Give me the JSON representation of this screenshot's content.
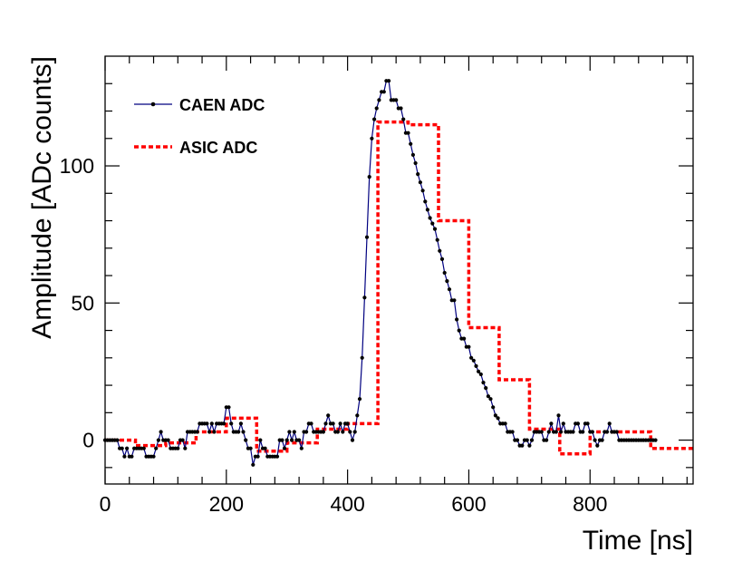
{
  "chart_data": {
    "type": "line",
    "title": "",
    "xlabel": "Time [ns]",
    "ylabel": "Amplitude [ADc counts]",
    "xlim": [
      0,
      970
    ],
    "ylim": [
      -16,
      140
    ],
    "x_ticks": [
      0,
      200,
      400,
      600,
      800
    ],
    "y_ticks": [
      0,
      50,
      100
    ],
    "x_tick_labels": [
      "0",
      "200",
      "400",
      "600",
      "800"
    ],
    "y_tick_labels": [
      "0",
      "50",
      "100"
    ],
    "legend_position": "top-left",
    "series": [
      {
        "name": "CAEN ADC",
        "style": "line-with-markers",
        "color": "#000080",
        "sample_interval_ns": 4,
        "x_start": 0,
        "values": [
          0,
          0,
          0,
          0,
          0,
          0,
          -3,
          -3,
          -6,
          -3,
          -6,
          -6,
          -3,
          -3,
          -3,
          -3,
          -3,
          -6,
          -6,
          -6,
          -6,
          -3,
          0,
          3,
          0,
          0,
          0,
          -3,
          -3,
          -3,
          -3,
          0,
          0,
          -3,
          3,
          3,
          3,
          3,
          3,
          6,
          6,
          6,
          6,
          3,
          6,
          3,
          6,
          6,
          6,
          6,
          12,
          12,
          6,
          3,
          3,
          3,
          6,
          3,
          0,
          -3,
          -3,
          -9,
          -6,
          -6,
          0,
          -3,
          -3,
          -6,
          -6,
          -6,
          -6,
          -6,
          0,
          0,
          -3,
          0,
          3,
          0,
          3,
          0,
          0,
          -3,
          3,
          3,
          6,
          6,
          3,
          3,
          3,
          3,
          3,
          6,
          9,
          6,
          6,
          3,
          3,
          6,
          3,
          6,
          6,
          3,
          0,
          3,
          9,
          15,
          30,
          52,
          74,
          96,
          110,
          117,
          121,
          124,
          127,
          127,
          131,
          131,
          124,
          124,
          124,
          121,
          121,
          117,
          112,
          112,
          108,
          104,
          101,
          97,
          94,
          91,
          87,
          84,
          81,
          79,
          77,
          73,
          69,
          66,
          61,
          58,
          55,
          51,
          51,
          44,
          40,
          37,
          37,
          34,
          34,
          30,
          29,
          27,
          25,
          24,
          21,
          19,
          16,
          15,
          12,
          9,
          8,
          6,
          6,
          6,
          3,
          3,
          3,
          0,
          0,
          -2,
          -2,
          0,
          0,
          -2,
          0,
          3,
          3,
          3,
          3,
          0,
          0,
          3,
          6,
          3,
          3,
          9,
          3,
          6,
          3,
          3,
          3,
          3,
          6,
          6,
          3,
          3,
          6,
          6,
          3,
          3,
          0,
          -2,
          0,
          0,
          3,
          3,
          6,
          3,
          3,
          3,
          0,
          0,
          0,
          0,
          0,
          0,
          0,
          0,
          0,
          0,
          0,
          0,
          0,
          0,
          0,
          0
        ]
      },
      {
        "name": "ASIC ADC",
        "style": "dashed-step",
        "color": "#ff0000",
        "steps": [
          {
            "x0": 0,
            "x1": 50,
            "y": 0
          },
          {
            "x0": 50,
            "x1": 100,
            "y": -2
          },
          {
            "x0": 100,
            "x1": 150,
            "y": -1
          },
          {
            "x0": 150,
            "x1": 200,
            "y": 3
          },
          {
            "x0": 200,
            "x1": 250,
            "y": 8
          },
          {
            "x0": 250,
            "x1": 300,
            "y": -4
          },
          {
            "x0": 300,
            "x1": 350,
            "y": -1
          },
          {
            "x0": 350,
            "x1": 400,
            "y": 4
          },
          {
            "x0": 400,
            "x1": 450,
            "y": 6
          },
          {
            "x0": 450,
            "x1": 500,
            "y": 116
          },
          {
            "x0": 500,
            "x1": 550,
            "y": 115
          },
          {
            "x0": 550,
            "x1": 600,
            "y": 80
          },
          {
            "x0": 600,
            "x1": 650,
            "y": 41
          },
          {
            "x0": 650,
            "x1": 700,
            "y": 22
          },
          {
            "x0": 700,
            "x1": 750,
            "y": 4
          },
          {
            "x0": 750,
            "x1": 800,
            "y": -5
          },
          {
            "x0": 800,
            "x1": 850,
            "y": 3
          },
          {
            "x0": 850,
            "x1": 900,
            "y": 3
          },
          {
            "x0": 900,
            "x1": 970,
            "y": -3
          }
        ]
      }
    ]
  },
  "colors": {
    "caen_line": "#000080",
    "caen_marker": "#000000",
    "asic_line": "#ff0000",
    "axis": "#000000"
  }
}
